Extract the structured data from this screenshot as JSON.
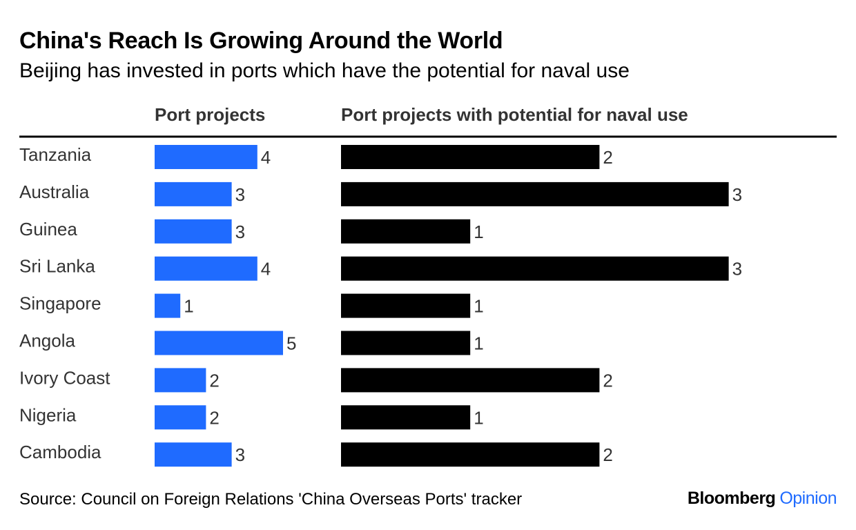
{
  "title": "China's Reach Is Growing Around the World",
  "subtitle": "Beijing has invested in ports which have the potential for naval use",
  "footer": {
    "source": "Source: Council on Foreign Relations 'China Overseas Ports' tracker",
    "brand_main": "Bloomberg",
    "brand_accent": "Opinion"
  },
  "colors": {
    "port_projects": "#1f6bff",
    "naval_use": "#000000",
    "label_text": "#333333"
  },
  "chart_data": {
    "type": "bar",
    "orientation": "horizontal",
    "title": "China's Reach Is Growing Around the World",
    "subtitle": "Beijing has invested in ports which have the potential for naval use",
    "categories": [
      "Tanzania",
      "Australia",
      "Guinea",
      "Sri Lanka",
      "Singapore",
      "Angola",
      "Ivory Coast",
      "Nigeria",
      "Cambodia"
    ],
    "series": [
      {
        "name": "Port projects",
        "values": [
          4,
          3,
          3,
          4,
          1,
          5,
          2,
          2,
          3
        ],
        "xlim": [
          0,
          5
        ]
      },
      {
        "name": "Port projects with potential for naval use",
        "values": [
          2,
          3,
          1,
          3,
          1,
          1,
          2,
          1,
          2
        ],
        "xlim": [
          0,
          3
        ]
      }
    ],
    "grid": false,
    "legend": "column headers"
  }
}
